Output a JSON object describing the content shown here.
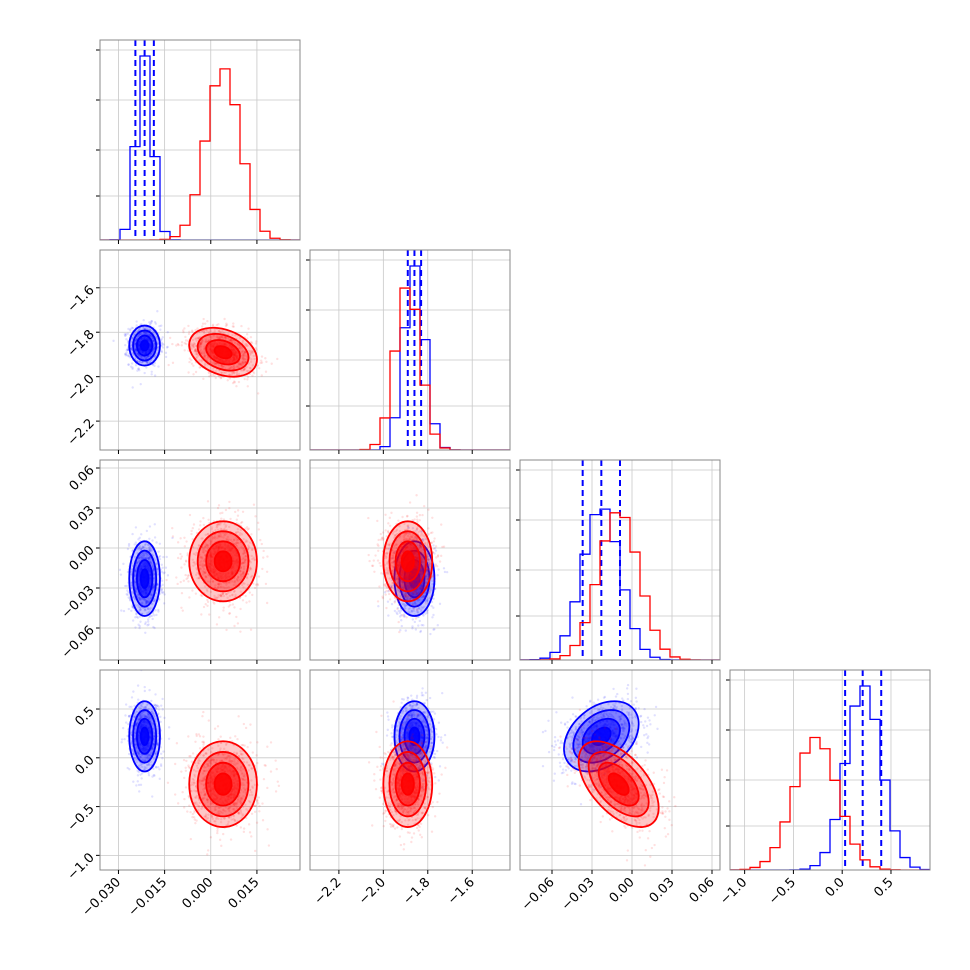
{
  "colors": {
    "series_a": "#0000ff",
    "series_b": "#ff0000",
    "grid": "#c8c8c8",
    "frame": "#888888"
  },
  "chart_data": {
    "type": "corner",
    "title": "",
    "grid": true,
    "params": [
      {
        "range": [
          -0.036,
          0.029
        ],
        "ticks": [
          -0.03,
          -0.015,
          0.0,
          0.015
        ],
        "tick_labels": [
          "−0.030",
          "−0.015",
          "0.000",
          "0.015"
        ]
      },
      {
        "range": [
          -2.33,
          -1.43
        ],
        "ticks": [
          -2.2,
          -2.0,
          -1.8,
          -1.6
        ],
        "tick_labels": [
          "−2.2",
          "−2.0",
          "−1.8",
          "−1.6"
        ]
      },
      {
        "range": [
          -0.084,
          0.066
        ],
        "ticks": [
          -0.06,
          -0.03,
          0.0,
          0.03,
          0.06
        ],
        "tick_labels": [
          "−0.06",
          "−0.03",
          "0.00",
          "0.03",
          "0.06"
        ]
      },
      {
        "range": [
          -1.15,
          0.9
        ],
        "ticks": [
          -1.0,
          -0.5,
          0.0,
          0.5
        ],
        "tick_labels": [
          "−1.0",
          "−0.5",
          "0.0",
          "0.5"
        ]
      }
    ],
    "series": [
      {
        "color": "#0000ff",
        "mean": [
          -0.0215,
          -1.86,
          -0.023,
          0.22
        ],
        "std": [
          0.0025,
          0.045,
          0.014,
          0.18
        ],
        "corr": {
          "2-3": 0.35
        },
        "quantiles": [
          [
            -0.0245,
            -0.0215,
            -0.0185
          ],
          [
            -1.89,
            -1.86,
            -1.83
          ],
          [
            -0.037,
            -0.023,
            -0.009
          ],
          [
            0.03,
            0.21,
            0.4
          ]
        ],
        "hist_peak_frac": [
          1.0,
          1.0,
          0.82,
          1.0
        ]
      },
      {
        "color": "#ff0000",
        "mean": [
          0.004,
          -1.89,
          -0.01,
          -0.27
        ],
        "std": [
          0.0055,
          0.055,
          0.015,
          0.22
        ],
        "corr": {
          "0-1": -0.3,
          "2-3": -0.55
        },
        "hist_peak_frac": [
          0.93,
          0.88,
          0.8,
          0.72
        ]
      }
    ]
  }
}
